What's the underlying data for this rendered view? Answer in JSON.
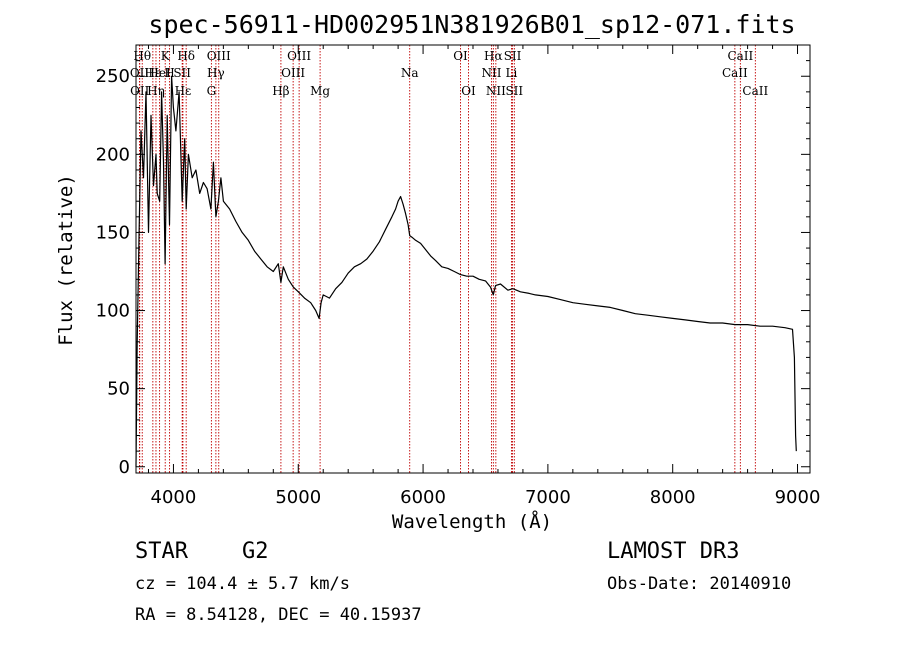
{
  "colors": {
    "spectrum": "#000000",
    "marker": "#c00000",
    "axes": "#000000"
  },
  "chart_data": {
    "type": "line",
    "title": "spec-56911-HD002951N381926B01_sp12-071.fits",
    "xlabel": "Wavelength (Å)",
    "ylabel": "Flux (relative)",
    "xlim": [
      3700,
      9100
    ],
    "ylim": [
      -4,
      270
    ],
    "x_ticks": [
      4000,
      5000,
      6000,
      7000,
      8000,
      9000
    ],
    "y_ticks": [
      0,
      50,
      100,
      150,
      200,
      250
    ],
    "series": [
      {
        "name": "spectrum",
        "x": [
          3700,
          3710,
          3725,
          3740,
          3760,
          3780,
          3800,
          3820,
          3840,
          3860,
          3870,
          3890,
          3905,
          3920,
          3933,
          3950,
          3968,
          3985,
          4000,
          4020,
          4045,
          4070,
          4090,
          4102,
          4120,
          4150,
          4180,
          4210,
          4240,
          4270,
          4300,
          4320,
          4340,
          4360,
          4380,
          4400,
          4450,
          4500,
          4550,
          4600,
          4650,
          4700,
          4750,
          4800,
          4840,
          4861,
          4880,
          4920,
          4960,
          5000,
          5050,
          5100,
          5140,
          5167,
          5183,
          5200,
          5250,
          5300,
          5350,
          5400,
          5450,
          5500,
          5550,
          5600,
          5650,
          5700,
          5750,
          5780,
          5800,
          5820,
          5840,
          5860,
          5880,
          5893,
          5910,
          5940,
          5980,
          6020,
          6060,
          6100,
          6150,
          6200,
          6250,
          6300,
          6350,
          6400,
          6450,
          6500,
          6540,
          6563,
          6580,
          6620,
          6680,
          6720,
          6780,
          6850,
          6900,
          7000,
          7100,
          7200,
          7300,
          7400,
          7500,
          7600,
          7700,
          7800,
          7900,
          8000,
          8100,
          8200,
          8300,
          8400,
          8500,
          8600,
          8700,
          8800,
          8900,
          8960,
          8975,
          8985,
          8990
        ],
        "y": [
          0,
          80,
          150,
          215,
          185,
          240,
          150,
          225,
          180,
          200,
          175,
          170,
          240,
          195,
          130,
          225,
          155,
          250,
          230,
          215,
          240,
          170,
          210,
          165,
          200,
          185,
          190,
          175,
          182,
          178,
          165,
          195,
          160,
          170,
          185,
          170,
          165,
          157,
          150,
          145,
          138,
          133,
          128,
          125,
          130,
          118,
          128,
          120,
          115,
          112,
          108,
          105,
          100,
          95,
          105,
          110,
          108,
          114,
          118,
          124,
          128,
          130,
          133,
          138,
          144,
          152,
          160,
          165,
          170,
          173,
          168,
          162,
          155,
          148,
          147,
          145,
          143,
          139,
          135,
          132,
          128,
          127,
          125,
          123,
          122,
          122,
          120,
          119,
          115,
          110,
          116,
          117,
          113,
          114,
          112,
          111,
          110,
          109,
          107,
          105,
          104,
          103,
          102,
          100,
          98,
          97,
          96,
          95,
          94,
          93,
          92,
          92,
          91,
          91,
          90,
          90,
          89,
          88,
          70,
          20,
          10
        ]
      }
    ],
    "line_markers": [
      {
        "wave": 3750,
        "row": 0,
        "label": "Hθ"
      },
      {
        "wave": 3728,
        "row": 1,
        "label": "OII"
      },
      {
        "wave": 3730,
        "row": 2,
        "label": "OII"
      },
      {
        "wave": 3835,
        "row": 1,
        "label": "Hε"
      },
      {
        "wave": 3889,
        "row": 1,
        "label": "HeI"
      },
      {
        "wave": 3860,
        "row": 2,
        "label": "Hη"
      },
      {
        "wave": 3934,
        "row": 0,
        "label": "K"
      },
      {
        "wave": 3969,
        "row": 1,
        "label": "H"
      },
      {
        "wave": 4102,
        "row": 0,
        "label": "Hδ"
      },
      {
        "wave": 4070,
        "row": 1,
        "label": "SII"
      },
      {
        "wave": 4076,
        "row": 2,
        "label": "Hε"
      },
      {
        "wave": 4340,
        "row": 1,
        "label": "Hγ"
      },
      {
        "wave": 4363,
        "row": 0,
        "label": "OIII"
      },
      {
        "wave": 4304,
        "row": 2,
        "label": "G"
      },
      {
        "wave": 4861,
        "row": 2,
        "label": "Hβ"
      },
      {
        "wave": 4959,
        "row": 1,
        "label": "OIII"
      },
      {
        "wave": 5007,
        "row": 0,
        "label": "OIII"
      },
      {
        "wave": 5175,
        "row": 2,
        "label": "Mg"
      },
      {
        "wave": 5893,
        "row": 1,
        "label": "Na"
      },
      {
        "wave": 6300,
        "row": 0,
        "label": "OI"
      },
      {
        "wave": 6364,
        "row": 2,
        "label": "OI"
      },
      {
        "wave": 6548,
        "row": 1,
        "label": "NII"
      },
      {
        "wave": 6563,
        "row": 0,
        "label": "Hα"
      },
      {
        "wave": 6583,
        "row": 2,
        "label": "NII"
      },
      {
        "wave": 6717,
        "row": 0,
        "label": "SII"
      },
      {
        "wave": 6708,
        "row": 1,
        "label": "Li"
      },
      {
        "wave": 6731,
        "row": 2,
        "label": "SII"
      },
      {
        "wave": 8542,
        "row": 0,
        "label": "CaII"
      },
      {
        "wave": 8498,
        "row": 1,
        "label": "CaII"
      },
      {
        "wave": 8662,
        "row": 2,
        "label": "CaII"
      }
    ]
  },
  "info": {
    "object_class": "STAR",
    "subclass": "G2",
    "survey": "LAMOST DR3",
    "cz": "cz = 104.4 ± 5.7 km/s",
    "obs_date": "Obs-Date: 20140910",
    "coords": "RA =   8.54128, DEC =  40.15937"
  }
}
